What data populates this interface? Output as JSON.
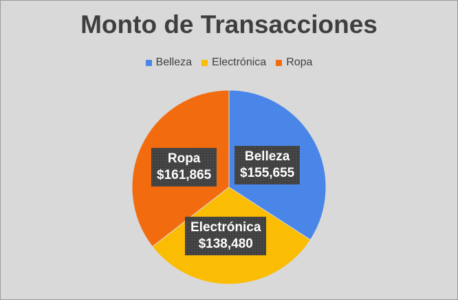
{
  "chart_data": {
    "type": "pie",
    "title": "Monto de Transacciones",
    "categories": [
      "Belleza",
      "Electrónica",
      "Ropa"
    ],
    "values": [
      155655,
      138480,
      161865
    ],
    "value_labels": [
      "$155,655",
      "$138,480",
      "$161,865"
    ],
    "colors": [
      "#4a86e8",
      "#fbbc04",
      "#f26b0f"
    ],
    "legend_position": "top"
  }
}
